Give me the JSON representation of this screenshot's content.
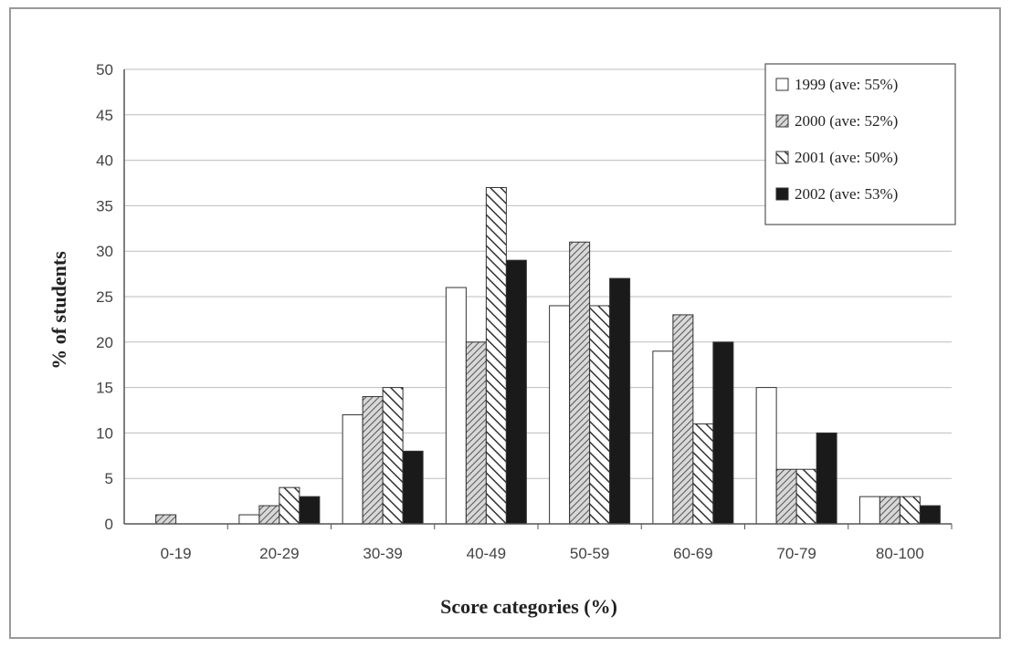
{
  "chart_data": {
    "type": "bar",
    "title": "",
    "xlabel": "Score categories (%)",
    "ylabel": "% of students",
    "ylim": [
      0,
      50
    ],
    "yticks": [
      0,
      5,
      10,
      15,
      20,
      25,
      30,
      35,
      40,
      45,
      50
    ],
    "grid": "horizontal",
    "legend_position": "top-right",
    "categories": [
      "0-19",
      "20-29",
      "30-39",
      "40-49",
      "50-59",
      "60-69",
      "70-79",
      "80-100"
    ],
    "series": [
      {
        "name": "1999 (ave: 55%)",
        "values": [
          0,
          1,
          12,
          26,
          24,
          19,
          15,
          3
        ],
        "color": "#ffffff",
        "pattern": "white"
      },
      {
        "name": "2000 (ave: 52%)",
        "values": [
          1,
          2,
          14,
          20,
          31,
          23,
          6,
          3
        ],
        "color": "#8a8a8a",
        "pattern": "dense-diagonal"
      },
      {
        "name": "2001 (ave: 50%)",
        "values": [
          0,
          4,
          15,
          37,
          24,
          11,
          6,
          3
        ],
        "color": "#555555",
        "pattern": "wide-diagonal"
      },
      {
        "name": "2002 (ave: 53%)",
        "values": [
          0,
          3,
          8,
          29,
          27,
          20,
          10,
          2
        ],
        "color": "#1a1a1a",
        "pattern": "solid"
      }
    ]
  }
}
